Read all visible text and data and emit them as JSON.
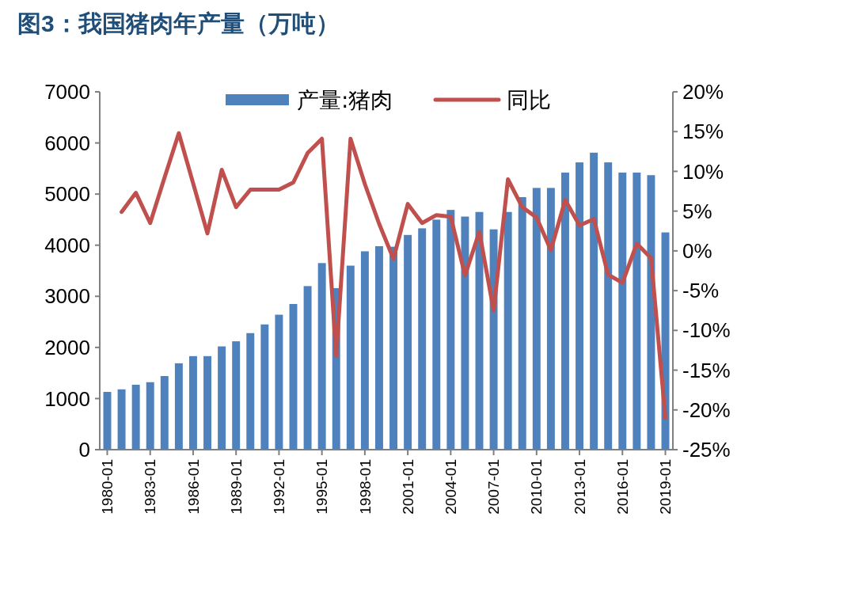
{
  "chart_data": {
    "type": "bar",
    "title": "图3：我国猪肉年产量（万吨）",
    "categories": [
      "1980-01",
      null,
      null,
      "1983-01",
      null,
      null,
      "1986-01",
      null,
      null,
      "1989-01",
      null,
      null,
      "1992-01",
      null,
      null,
      "1995-01",
      null,
      null,
      "1998-01",
      null,
      null,
      "2001-01",
      null,
      null,
      "2004-01",
      null,
      null,
      "2007-01",
      null,
      null,
      "2010-01",
      null,
      null,
      "2013-01",
      null,
      null,
      "2016-01",
      null,
      null,
      "2019-01"
    ],
    "series": [
      {
        "name": "产量:猪肉",
        "color": "#4f81bd",
        "values": [
          1130,
          1180,
          1270,
          1320,
          1440,
          1690,
          1830,
          1830,
          2020,
          2120,
          2280,
          2450,
          2640,
          2850,
          3200,
          3650,
          3160,
          3600,
          3880,
          3980,
          3970,
          4200,
          4330,
          4500,
          4690,
          4560,
          4650,
          4310,
          4650,
          4940,
          5120,
          5120,
          5420,
          5620,
          5810,
          5620,
          5420,
          5420,
          5370,
          4250
        ]
      },
      {
        "name": "同比",
        "type": "line",
        "axis": "y2",
        "color": "#c0504d",
        "values": [
          null,
          4.9,
          7.3,
          3.5,
          9.2,
          14.8,
          8.5,
          2.2,
          10.2,
          5.5,
          7.7,
          7.7,
          7.7,
          8.6,
          12.3,
          14.1,
          -13.2,
          14.1,
          8.4,
          3.4,
          -1.0,
          5.9,
          3.5,
          4.5,
          4.3,
          -3.1,
          2.4,
          -7.5,
          9.0,
          5.5,
          4.2,
          0.1,
          6.4,
          3.2,
          4.0,
          -3.0,
          -4.0,
          0.9,
          -0.9,
          -21.0
        ]
      }
    ],
    "ylim": [
      0,
      7000
    ],
    "yticks": [
      0,
      1000,
      2000,
      3000,
      4000,
      5000,
      6000,
      7000
    ],
    "y2lim": [
      -25,
      20
    ],
    "y2ticks": [
      {
        "value": -25,
        "label": "-25%"
      },
      {
        "value": -20,
        "label": "-20%"
      },
      {
        "value": -15,
        "label": "-15%"
      },
      {
        "value": -10,
        "label": "-10%"
      },
      {
        "value": -5,
        "label": "-5%"
      },
      {
        "value": 0,
        "label": "0%"
      },
      {
        "value": 5,
        "label": "5%"
      },
      {
        "value": 10,
        "label": "10%"
      },
      {
        "value": 15,
        "label": "15%"
      },
      {
        "value": 20,
        "label": "20%"
      }
    ],
    "legend": "top",
    "grid": false,
    "marker": "none",
    "line_style": "solid"
  }
}
